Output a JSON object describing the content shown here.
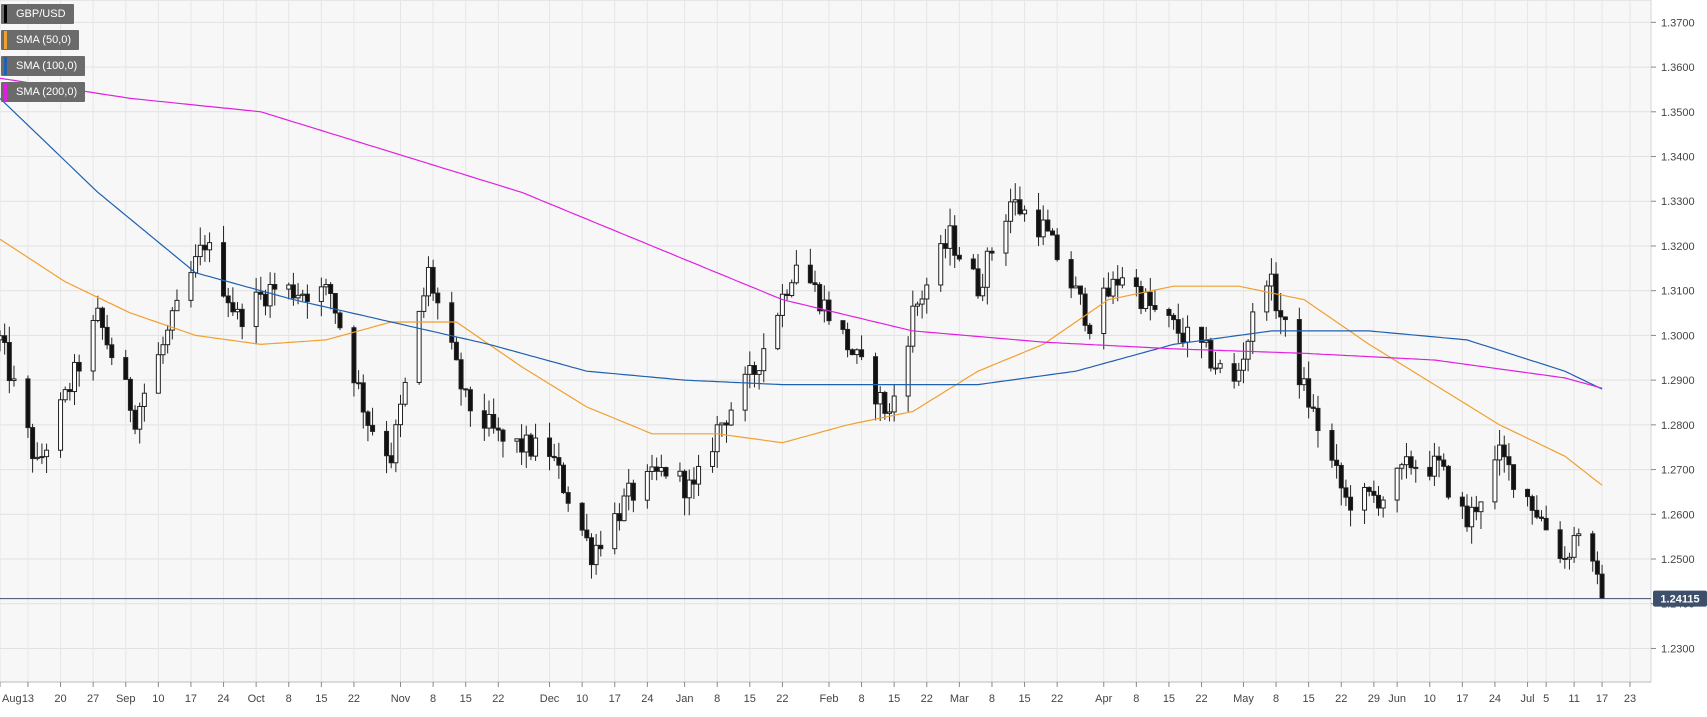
{
  "chart_data": {
    "type": "candlestick",
    "title": "",
    "xlabel": "",
    "ylabel": "",
    "ylim": [
      1.2225,
      1.375
    ],
    "y_ticks": [
      "1.2300",
      "1.2400",
      "1.2500",
      "1.2600",
      "1.2700",
      "1.2800",
      "1.2900",
      "1.3000",
      "1.3100",
      "1.3200",
      "1.3300",
      "1.3400",
      "1.3500",
      "1.3600",
      "1.3700"
    ],
    "x_tick_labels": [
      "Aug",
      "13",
      "20",
      "27",
      "Sep",
      "10",
      "17",
      "24",
      "Oct",
      "8",
      "15",
      "22",
      "Nov",
      "8",
      "15",
      "22",
      "Dec",
      "10",
      "17",
      "24",
      "Jan",
      "8",
      "15",
      "22",
      "Feb",
      "8",
      "15",
      "22",
      "Mar",
      "8",
      "15",
      "22",
      "Apr",
      "8",
      "15",
      "22",
      "May",
      "8",
      "15",
      "22",
      "29",
      "Jun",
      "10",
      "17",
      "24",
      "Jul",
      "5",
      "11",
      "17",
      "23"
    ],
    "legend": [
      {
        "label": "GBP/USD",
        "color": "#000000"
      },
      {
        "label": "SMA (50,0)",
        "color": "#f0a030"
      },
      {
        "label": "SMA (100,0)",
        "color": "#2060b0"
      },
      {
        "label": "SMA (200,0)",
        "color": "#e020e0"
      }
    ],
    "last_price": {
      "label": "1.24115",
      "value": 1.24115
    },
    "grid": true,
    "series": [
      {
        "name": "GBP/USD",
        "kind": "ohlc-summary",
        "x": [
          "2018-08-07",
          "2018-08-15",
          "2018-08-28",
          "2018-09-05",
          "2018-09-20",
          "2018-09-27",
          "2018-10-04",
          "2018-10-17",
          "2018-10-25",
          "2018-10-30",
          "2018-11-07",
          "2018-11-15",
          "2018-11-23",
          "2018-12-03",
          "2018-12-12",
          "2018-12-20",
          "2018-12-28",
          "2019-01-03",
          "2019-01-08",
          "2019-01-16",
          "2019-01-25",
          "2019-02-01",
          "2019-02-14",
          "2019-02-19",
          "2019-02-27",
          "2019-03-05",
          "2019-03-12",
          "2019-03-19",
          "2019-03-29",
          "2019-04-05",
          "2019-04-12",
          "2019-04-22",
          "2019-04-29",
          "2019-05-06",
          "2019-05-14",
          "2019-05-23",
          "2019-05-31",
          "2019-06-06",
          "2019-06-12",
          "2019-06-18",
          "2019-06-25",
          "2019-07-02",
          "2019-07-09",
          "2019-07-12",
          "2019-07-16",
          "2019-07-17"
        ],
        "close": [
          1.299,
          1.2705,
          1.304,
          1.282,
          1.321,
          1.304,
          1.3105,
          1.3095,
          1.281,
          1.273,
          1.314,
          1.285,
          1.276,
          1.274,
          1.2515,
          1.264,
          1.27,
          1.265,
          1.279,
          1.292,
          1.317,
          1.305,
          1.282,
          1.305,
          1.322,
          1.311,
          1.33,
          1.324,
          1.303,
          1.314,
          1.305,
          1.297,
          1.289,
          1.314,
          1.288,
          1.263,
          1.264,
          1.2715,
          1.2705,
          1.258,
          1.273,
          1.2625,
          1.25,
          1.257,
          1.244,
          1.2412
        ]
      },
      {
        "name": "SMA (50,0)",
        "x": [
          "2018-08-07",
          "2018-08-21",
          "2018-09-04",
          "2018-09-18",
          "2018-10-02",
          "2018-10-16",
          "2018-10-30",
          "2018-11-13",
          "2018-11-27",
          "2018-12-11",
          "2018-12-25",
          "2019-01-08",
          "2019-01-22",
          "2019-02-05",
          "2019-02-19",
          "2019-03-05",
          "2019-03-19",
          "2019-04-02",
          "2019-04-16",
          "2019-04-30",
          "2019-05-14",
          "2019-05-28",
          "2019-06-11",
          "2019-06-25",
          "2019-07-09",
          "2019-07-17"
        ],
        "values": [
          1.3215,
          1.312,
          1.305,
          1.3,
          1.298,
          1.299,
          1.303,
          1.303,
          1.293,
          1.284,
          1.278,
          1.278,
          1.276,
          1.28,
          1.283,
          1.292,
          1.298,
          1.308,
          1.311,
          1.311,
          1.308,
          1.298,
          1.289,
          1.28,
          1.273,
          1.2665
        ]
      },
      {
        "name": "SMA (100,0)",
        "x": [
          "2018-08-07",
          "2018-08-28",
          "2018-09-18",
          "2018-10-09",
          "2018-10-30",
          "2018-11-20",
          "2018-12-11",
          "2019-01-01",
          "2019-01-22",
          "2019-02-12",
          "2019-03-05",
          "2019-03-26",
          "2019-04-16",
          "2019-05-07",
          "2019-05-28",
          "2019-06-18",
          "2019-07-09",
          "2019-07-17"
        ],
        "values": [
          1.353,
          1.332,
          1.314,
          1.308,
          1.303,
          1.298,
          1.292,
          1.29,
          1.289,
          1.289,
          1.289,
          1.292,
          1.298,
          1.301,
          1.301,
          1.299,
          1.292,
          1.288
        ]
      },
      {
        "name": "SMA (200,0)",
        "x": [
          "2018-08-07",
          "2018-09-04",
          "2018-10-02",
          "2018-10-30",
          "2018-11-27",
          "2018-12-25",
          "2019-01-22",
          "2019-02-19",
          "2019-03-19",
          "2019-04-16",
          "2019-05-14",
          "2019-06-11",
          "2019-07-09",
          "2019-07-17"
        ],
        "values": [
          1.3575,
          1.353,
          1.35,
          1.341,
          1.332,
          1.32,
          1.308,
          1.301,
          1.2985,
          1.297,
          1.296,
          1.2945,
          1.2905,
          1.2882
        ]
      }
    ]
  }
}
